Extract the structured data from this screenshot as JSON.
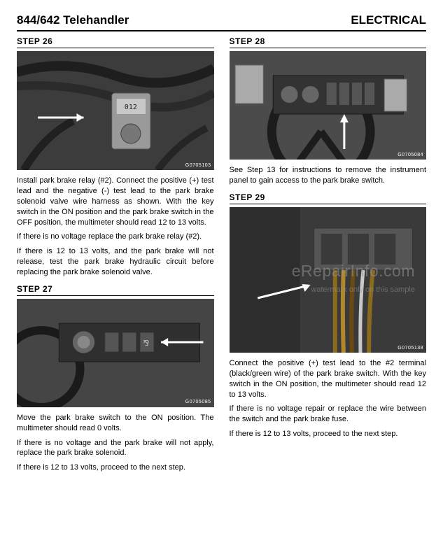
{
  "header": {
    "left": "844/642 Telehandler",
    "right": "ELECTRICAL"
  },
  "watermark": {
    "line1": "eRepairInfo.com",
    "line2": "watermark only on this sample"
  },
  "left_col": {
    "step26": {
      "heading": "STEP  26",
      "fig_id": "G0705103",
      "fig_height": 170,
      "p1": "Install park brake relay (#2). Connect the positive (+) test lead and the negative (-) test lead to the park brake solenoid valve wire harness as shown. With the key switch in the ON position and the park brake switch in the OFF position, the multimeter should read 12 to 13 volts.",
      "p2": "If there is no voltage replace the park brake relay (#2).",
      "p3": "If there is 12 to 13 volts, and the park brake will not release, test the park brake hydraulic circuit before replacing the park brake solenoid valve."
    },
    "step27": {
      "heading": "STEP  27",
      "fig_id": "G0705085",
      "fig_height": 155,
      "p1": "Move the park brake switch to the ON position. The multimeter should read 0 volts.",
      "p2": "If there is no voltage and the park brake will not apply, replace the park brake solenoid.",
      "p3": "If there is 12 to 13 volts, proceed to the next step."
    }
  },
  "right_col": {
    "step28": {
      "heading": "STEP  28",
      "fig_id": "G0705084",
      "fig_height": 155,
      "p1": "See Step 13 for instructions to remove the instrument panel to gain access to the park brake switch."
    },
    "step29": {
      "heading": "STEP  29",
      "fig_id": "G0705138",
      "fig_height": 208,
      "p1": "Connect the positive (+) test lead to the #2 terminal (black/green wire) of the park brake switch. With the key switch in the ON position, the multimeter should read 12 to 13 volts.",
      "p2": "If there is no voltage repair or replace the wire between the switch and the park brake fuse.",
      "p3": "If there is 12 to 13 volts, proceed to the next step."
    }
  },
  "colors": {
    "fig_bg": "#4a4a4a",
    "fig_dark": "#2a2a2a",
    "fig_light": "#7a7a7a",
    "arrow": "#ffffff"
  }
}
